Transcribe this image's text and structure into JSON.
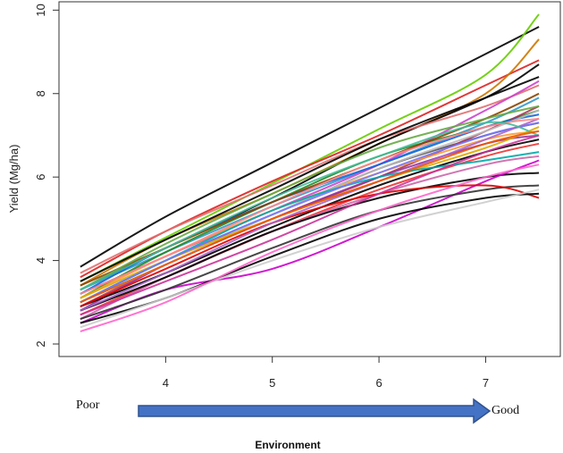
{
  "chart_data": {
    "type": "line",
    "title": "",
    "xlabel": "",
    "ylabel": "Yield (Mg/ha)",
    "xlim": [
      3.0,
      7.7
    ],
    "ylim": [
      1.7,
      10.2
    ],
    "x_ticks": [
      4,
      5,
      6,
      7
    ],
    "y_ticks": [
      2,
      4,
      6,
      8,
      10
    ],
    "grid": false,
    "legend": "none",
    "x": [
      3.2,
      4.0,
      5.0,
      6.0,
      7.0,
      7.5
    ],
    "series": [
      {
        "color": "#000000",
        "values": [
          3.85,
          5.05,
          6.35,
          7.65,
          8.95,
          9.6
        ]
      },
      {
        "color": "#66cc00",
        "values": [
          3.5,
          4.55,
          5.85,
          7.15,
          8.45,
          9.9
        ]
      },
      {
        "color": "#dd2222",
        "values": [
          3.6,
          4.7,
          5.9,
          7.0,
          8.2,
          8.8
        ]
      },
      {
        "color": "#cc7700",
        "values": [
          3.4,
          4.5,
          5.6,
          6.8,
          8.0,
          9.3
        ]
      },
      {
        "color": "#000000",
        "values": [
          3.3,
          4.3,
          5.5,
          6.8,
          7.9,
          8.7
        ]
      },
      {
        "color": "#e07070",
        "values": [
          3.7,
          4.7,
          5.8,
          6.9,
          7.7,
          8.2
        ]
      },
      {
        "color": "#3399cc",
        "values": [
          3.3,
          4.2,
          5.3,
          6.3,
          7.3,
          7.9
        ]
      },
      {
        "color": "#cc44cc",
        "values": [
          3.2,
          4.1,
          5.2,
          6.3,
          7.6,
          8.3
        ]
      },
      {
        "color": "#228822",
        "values": [
          3.1,
          4.2,
          5.4,
          6.5,
          7.2,
          7.6
        ]
      },
      {
        "color": "#555555",
        "values": [
          3.0,
          4.0,
          5.1,
          6.2,
          7.0,
          7.3
        ]
      },
      {
        "color": "#aa3355",
        "values": [
          2.9,
          3.9,
          5.0,
          6.0,
          7.1,
          7.7
        ]
      },
      {
        "color": "#ff9933",
        "values": [
          3.1,
          4.1,
          5.2,
          6.1,
          6.9,
          7.1
        ]
      },
      {
        "color": "#993399",
        "values": [
          2.8,
          3.9,
          5.0,
          6.0,
          6.8,
          7.0
        ]
      },
      {
        "color": "#1166dd",
        "values": [
          3.2,
          4.3,
          5.4,
          6.3,
          7.2,
          7.5
        ]
      },
      {
        "color": "#000000",
        "values": [
          2.9,
          3.7,
          4.8,
          5.8,
          6.6,
          6.9
        ]
      },
      {
        "color": "#ee3333",
        "values": [
          2.7,
          3.6,
          4.7,
          5.7,
          6.5,
          6.8
        ]
      },
      {
        "color": "#bbbbbb",
        "values": [
          3.0,
          3.9,
          5.1,
          6.2,
          7.1,
          7.6
        ]
      },
      {
        "color": "#ddaa00",
        "values": [
          3.1,
          4.0,
          5.0,
          5.9,
          6.7,
          7.2
        ]
      },
      {
        "color": "#cc66aa",
        "values": [
          2.6,
          3.6,
          4.7,
          5.6,
          6.3,
          6.5
        ]
      },
      {
        "color": "#000000",
        "values": [
          2.8,
          3.6,
          4.7,
          5.5,
          6.0,
          6.1
        ]
      },
      {
        "color": "#00aaaa",
        "values": [
          3.0,
          4.0,
          5.2,
          6.0,
          6.4,
          6.6
        ]
      },
      {
        "color": "#cc00cc",
        "values": [
          2.5,
          3.3,
          3.8,
          4.8,
          5.9,
          6.4
        ]
      },
      {
        "color": "#333333",
        "values": [
          2.6,
          3.3,
          4.3,
          5.2,
          5.7,
          5.8
        ]
      },
      {
        "color": "#dd0000",
        "values": [
          2.9,
          3.8,
          4.9,
          5.6,
          5.8,
          5.5
        ]
      },
      {
        "color": "#000000",
        "values": [
          2.5,
          3.1,
          4.1,
          5.0,
          5.5,
          5.6
        ]
      },
      {
        "color": "#cccccc",
        "values": [
          2.4,
          3.1,
          4.0,
          4.8,
          5.4,
          5.7
        ]
      },
      {
        "color": "#ff66cc",
        "values": [
          2.3,
          3.0,
          4.2,
          5.2,
          6.0,
          6.3
        ]
      },
      {
        "color": "#884400",
        "values": [
          3.4,
          4.3,
          5.4,
          6.4,
          7.4,
          8.0
        ]
      },
      {
        "color": "#66aa44",
        "values": [
          3.3,
          4.4,
          5.6,
          6.7,
          7.4,
          7.7
        ]
      },
      {
        "color": "#7777ff",
        "values": [
          3.0,
          4.0,
          5.1,
          6.1,
          7.0,
          7.3
        ]
      },
      {
        "color": "#aa66cc",
        "values": [
          2.8,
          3.7,
          4.9,
          5.9,
          6.9,
          7.4
        ]
      },
      {
        "color": "#ff8888",
        "values": [
          3.2,
          4.1,
          5.3,
          6.4,
          7.2,
          7.4
        ]
      },
      {
        "color": "#000000",
        "values": [
          3.5,
          4.5,
          5.7,
          6.9,
          7.9,
          8.4
        ]
      },
      {
        "color": "#44bb99",
        "values": [
          3.3,
          4.3,
          5.5,
          6.5,
          7.3,
          7.0
        ]
      },
      {
        "color": "#ee5500",
        "values": [
          3.0,
          3.9,
          5.0,
          5.9,
          6.8,
          7.1
        ]
      },
      {
        "color": "#cc3399",
        "values": [
          2.7,
          3.5,
          4.5,
          5.6,
          6.6,
          7.0
        ]
      }
    ],
    "annotations": {
      "poor": "Poor",
      "good": "Good",
      "environment": "Environment"
    },
    "colors": {
      "arrow_fill": "#4472c4",
      "arrow_stroke": "#2f528f",
      "axis": "#333333"
    }
  }
}
